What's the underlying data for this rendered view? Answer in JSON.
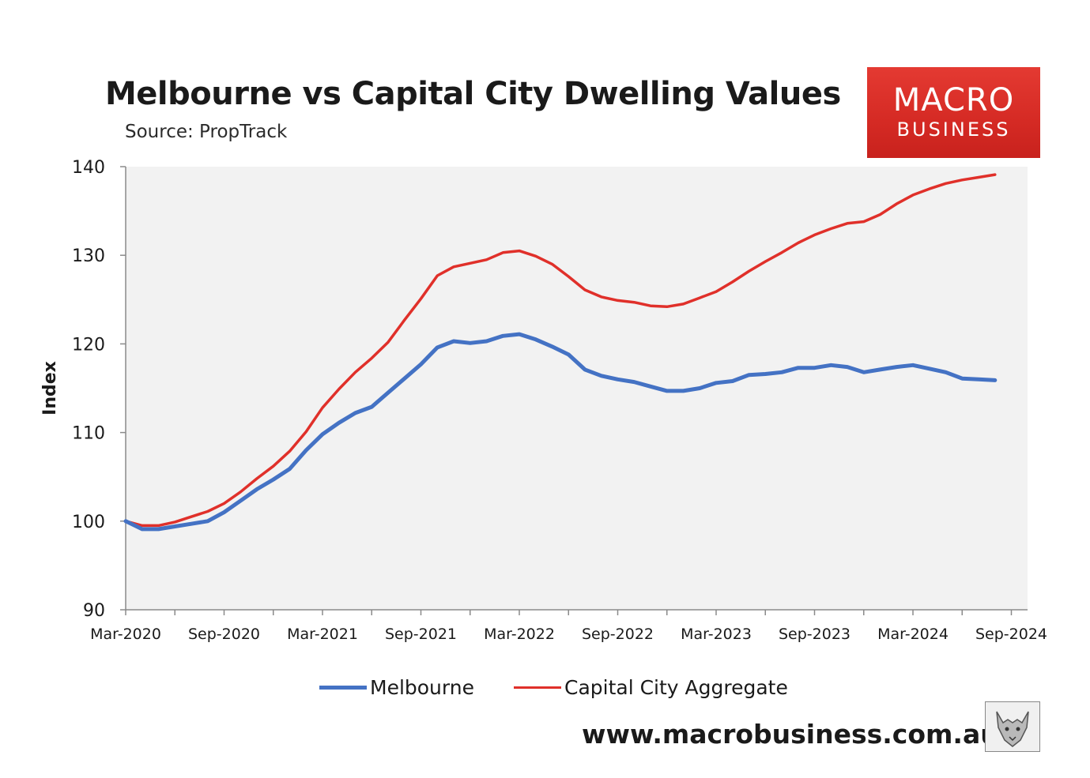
{
  "page": {
    "title": "Melbourne vs Capital City Dwelling Values",
    "source": "Source: PropTrack",
    "logo": {
      "line1": "MACRO",
      "line2": "BUSINESS"
    },
    "website": "www.macrobusiness.com.au",
    "colors": {
      "melbourne": "#4472c4",
      "capital": "#e0302a",
      "plot_background": "#f2f2f2",
      "logo": "#d52a24"
    }
  },
  "chart_data": {
    "type": "line",
    "title": "Melbourne vs Capital City Dwelling Values",
    "subtitle": "Source: PropTrack",
    "xlabel": "",
    "ylabel": "Index",
    "ylim": [
      90,
      140
    ],
    "yticks": [
      90,
      100,
      110,
      120,
      130,
      140
    ],
    "x_tick_labels": [
      "Mar-2020",
      "Sep-2020",
      "Mar-2021",
      "Sep-2021",
      "Mar-2022",
      "Sep-2022",
      "Mar-2023",
      "Sep-2023",
      "Mar-2024",
      "Sep-2024"
    ],
    "x": [
      "Mar-2020",
      "Apr-2020",
      "May-2020",
      "Jun-2020",
      "Jul-2020",
      "Aug-2020",
      "Sep-2020",
      "Oct-2020",
      "Nov-2020",
      "Dec-2020",
      "Jan-2021",
      "Feb-2021",
      "Mar-2021",
      "Apr-2021",
      "May-2021",
      "Jun-2021",
      "Jul-2021",
      "Aug-2021",
      "Sep-2021",
      "Oct-2021",
      "Nov-2021",
      "Dec-2021",
      "Jan-2022",
      "Feb-2022",
      "Mar-2022",
      "Apr-2022",
      "May-2022",
      "Jun-2022",
      "Jul-2022",
      "Aug-2022",
      "Sep-2022",
      "Oct-2022",
      "Nov-2022",
      "Dec-2022",
      "Jan-2023",
      "Feb-2023",
      "Mar-2023",
      "Apr-2023",
      "May-2023",
      "Jun-2023",
      "Jul-2023",
      "Aug-2023",
      "Sep-2023",
      "Oct-2023",
      "Nov-2023",
      "Dec-2023",
      "Jan-2024",
      "Feb-2024",
      "Mar-2024",
      "Apr-2024",
      "May-2024",
      "Jun-2024",
      "Jul-2024",
      "Aug-2024"
    ],
    "series": [
      {
        "name": "Melbourne",
        "color": "#4472c4",
        "values": [
          100.0,
          99.1,
          99.1,
          99.4,
          99.7,
          100.0,
          101.0,
          102.3,
          103.6,
          104.7,
          105.9,
          108.0,
          109.8,
          111.1,
          112.2,
          112.9,
          114.5,
          116.1,
          117.7,
          119.6,
          120.3,
          120.1,
          120.3,
          120.9,
          121.1,
          120.5,
          119.7,
          118.8,
          117.1,
          116.4,
          116.0,
          115.7,
          115.2,
          114.7,
          114.7,
          115.0,
          115.6,
          115.8,
          116.5,
          116.6,
          116.8,
          117.3,
          117.3,
          117.6,
          117.4,
          116.8,
          117.1,
          117.4,
          117.6,
          117.2,
          116.8,
          116.1,
          116.0,
          115.9
        ]
      },
      {
        "name": "Capital City Aggregate",
        "color": "#e0302a",
        "values": [
          100.0,
          99.5,
          99.5,
          99.9,
          100.5,
          101.1,
          102.0,
          103.3,
          104.8,
          106.2,
          107.9,
          110.1,
          112.8,
          114.9,
          116.8,
          118.4,
          120.2,
          122.7,
          125.1,
          127.7,
          128.7,
          129.1,
          129.5,
          130.3,
          130.5,
          129.9,
          129.0,
          127.6,
          126.1,
          125.3,
          124.9,
          124.7,
          124.3,
          124.2,
          124.5,
          125.2,
          125.9,
          127.0,
          128.2,
          129.3,
          130.3,
          131.4,
          132.3,
          133.0,
          133.6,
          133.8,
          134.6,
          135.8,
          136.8,
          137.5,
          138.1,
          138.5,
          138.8,
          139.1
        ]
      }
    ],
    "grid": false,
    "legend": "bottom-center"
  }
}
